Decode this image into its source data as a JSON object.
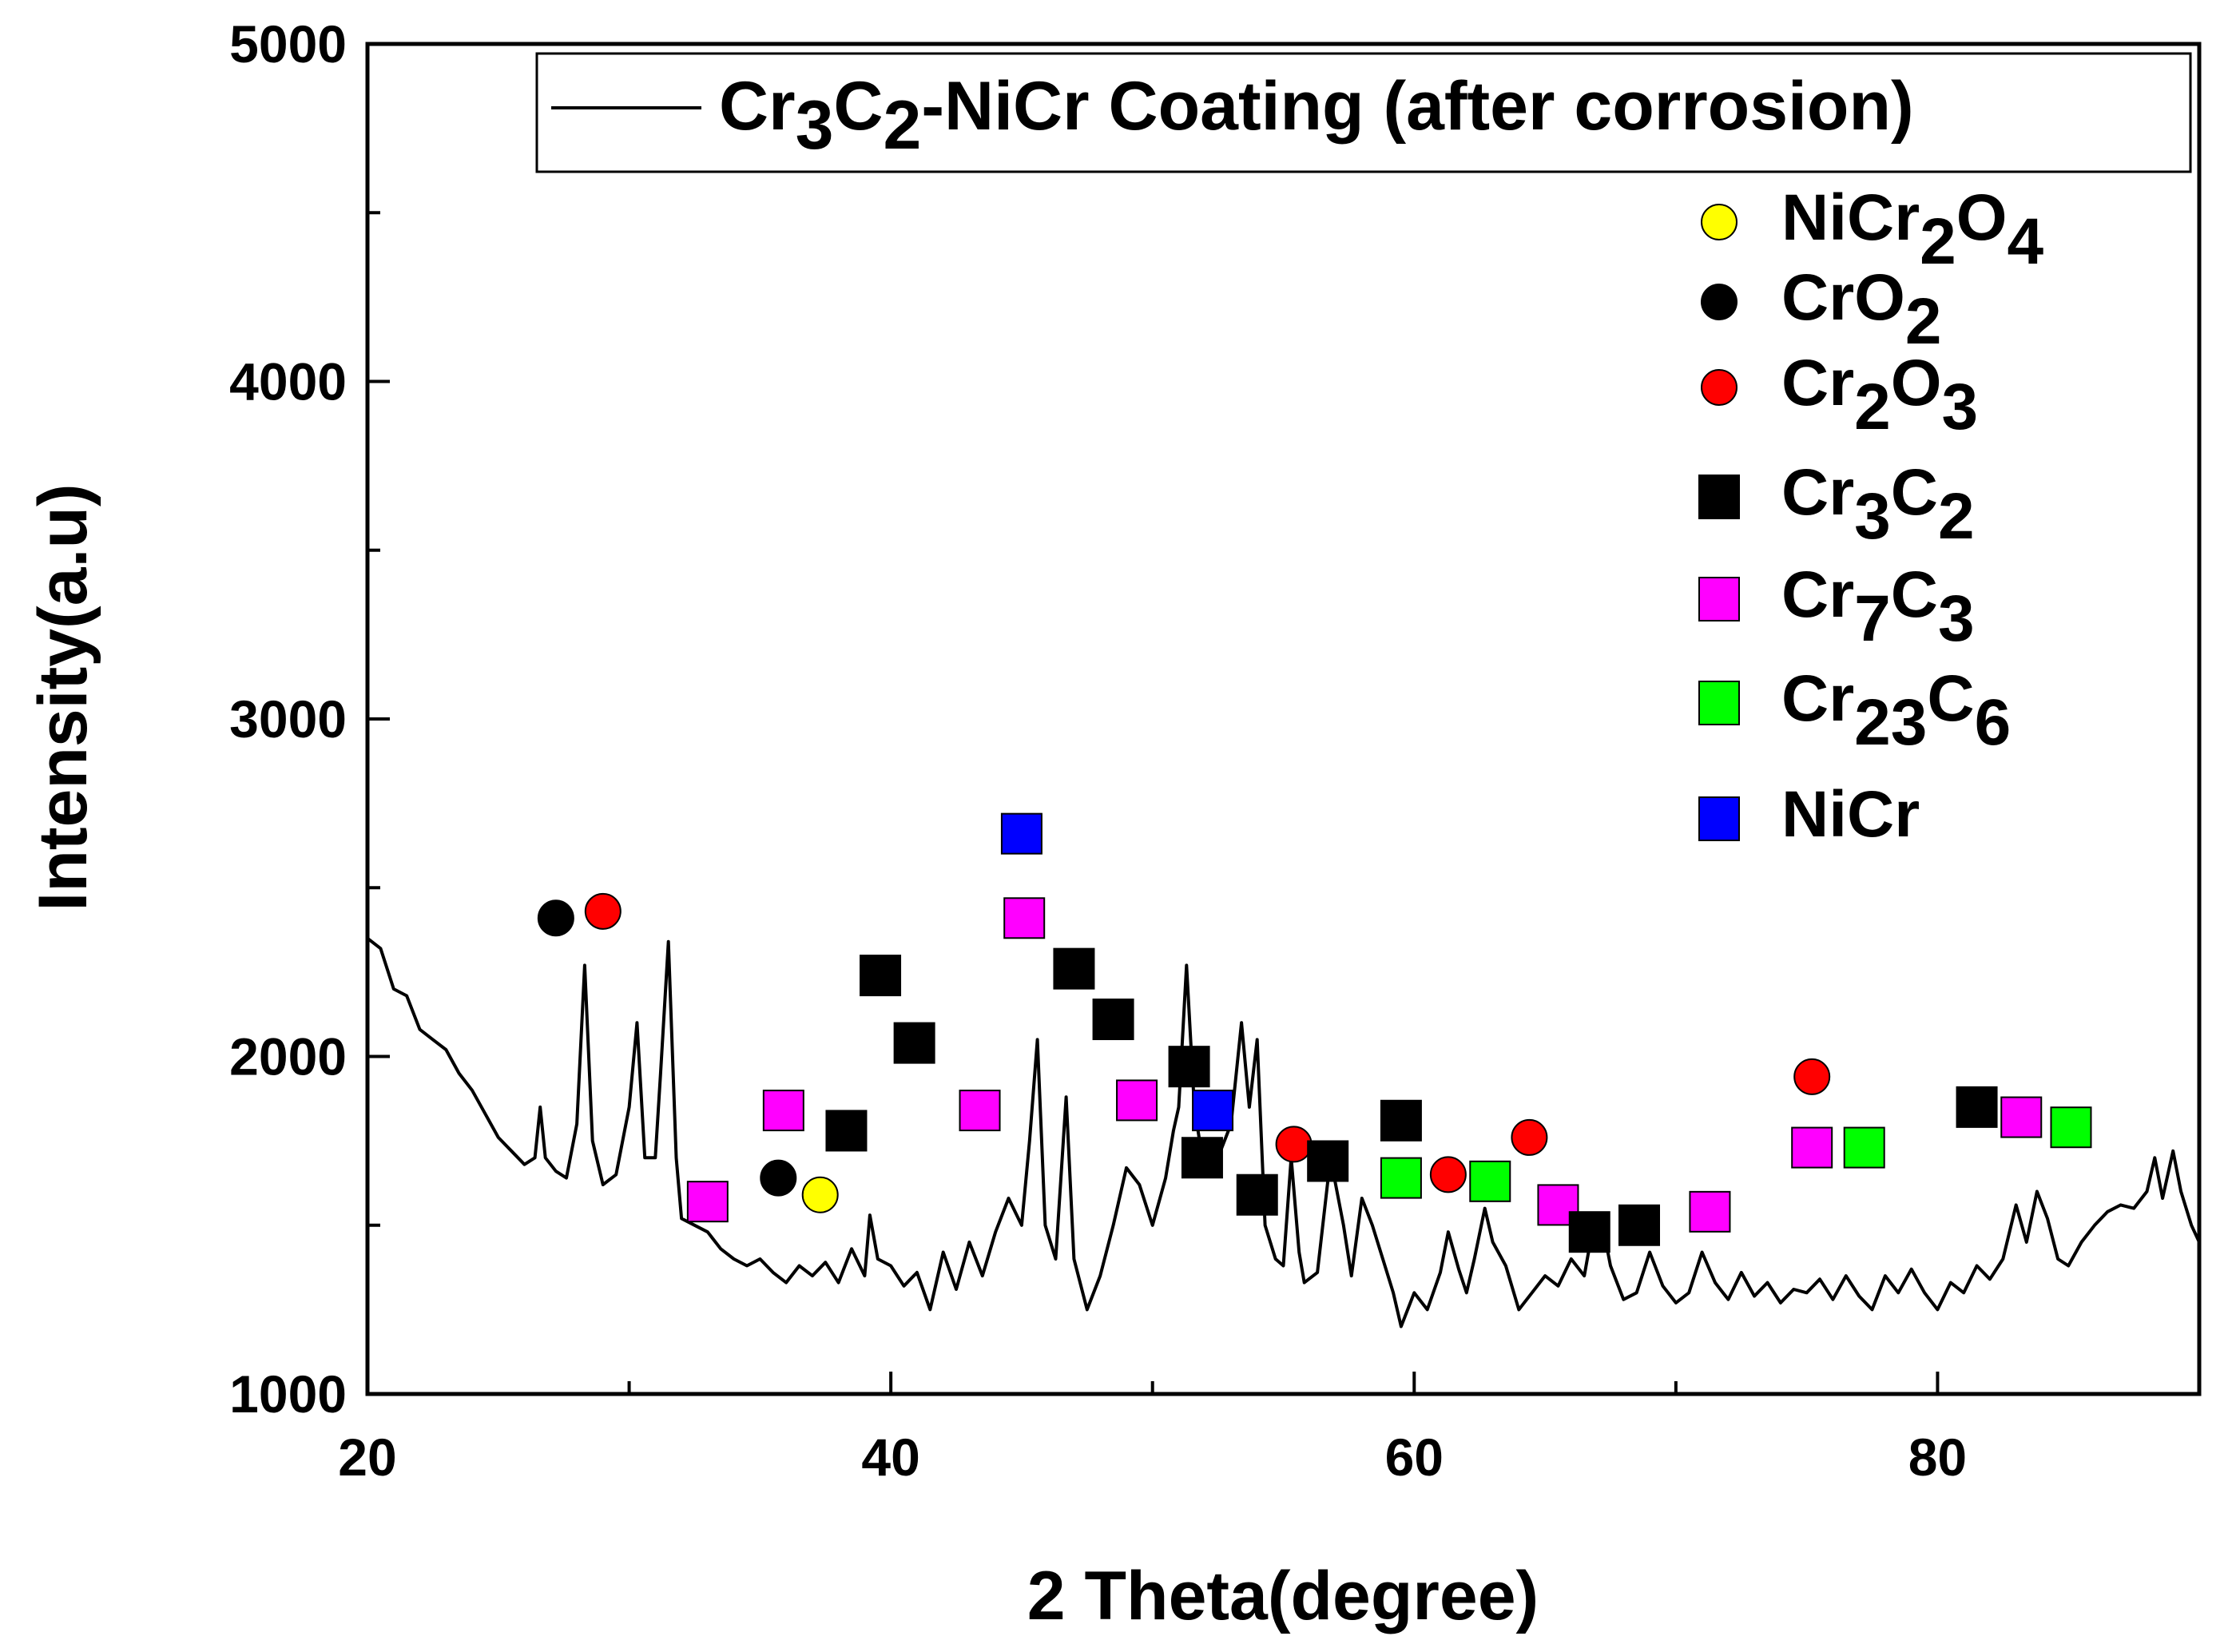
{
  "chart_data": {
    "type": "line",
    "title": "",
    "xlabel": "2 Theta(degree)",
    "ylabel": "Intensity(a.u)",
    "xlim": [
      20,
      90
    ],
    "ylim": [
      1000,
      5000
    ],
    "x_ticks": [
      20,
      40,
      60,
      80
    ],
    "y_ticks": [
      1000,
      2000,
      3000,
      4000,
      5000
    ],
    "grid": false,
    "legend_position": "top-right",
    "series": [
      {
        "name": "Cr3C2-NiCr Coating (after corrosion)",
        "name_parts": [
          {
            "t": "Cr",
            "sub": false
          },
          {
            "t": "3",
            "sub": true
          },
          {
            "t": "C",
            "sub": false
          },
          {
            "t": "2",
            "sub": true
          },
          {
            "t": "-NiCr Coating (after corrosion)",
            "sub": false
          }
        ],
        "color": "#000000",
        "points": [
          [
            20.0,
            2350
          ],
          [
            20.5,
            2320
          ],
          [
            21.0,
            2200
          ],
          [
            21.5,
            2180
          ],
          [
            22.0,
            2080
          ],
          [
            22.5,
            2050
          ],
          [
            23.0,
            2020
          ],
          [
            23.5,
            1950
          ],
          [
            24.0,
            1900
          ],
          [
            24.5,
            1830
          ],
          [
            25.0,
            1760
          ],
          [
            25.5,
            1720
          ],
          [
            26.0,
            1680
          ],
          [
            26.4,
            1700
          ],
          [
            26.6,
            1850
          ],
          [
            26.8,
            1700
          ],
          [
            27.2,
            1660
          ],
          [
            27.6,
            1640
          ],
          [
            28.0,
            1800
          ],
          [
            28.3,
            2270
          ],
          [
            28.6,
            1750
          ],
          [
            29.0,
            1620
          ],
          [
            29.5,
            1650
          ],
          [
            30.0,
            1850
          ],
          [
            30.3,
            2100
          ],
          [
            30.6,
            1700
          ],
          [
            31.0,
            1700
          ],
          [
            31.2,
            1950
          ],
          [
            31.5,
            2340
          ],
          [
            31.8,
            1700
          ],
          [
            32.0,
            1520
          ],
          [
            32.5,
            1500
          ],
          [
            33.0,
            1480
          ],
          [
            33.5,
            1430
          ],
          [
            34.0,
            1400
          ],
          [
            34.5,
            1380
          ],
          [
            35.0,
            1400
          ],
          [
            35.5,
            1360
          ],
          [
            36.0,
            1330
          ],
          [
            36.5,
            1380
          ],
          [
            37.0,
            1350
          ],
          [
            37.5,
            1390
          ],
          [
            38.0,
            1330
          ],
          [
            38.5,
            1430
          ],
          [
            39.0,
            1350
          ],
          [
            39.2,
            1530
          ],
          [
            39.5,
            1400
          ],
          [
            40.0,
            1380
          ],
          [
            40.5,
            1320
          ],
          [
            41.0,
            1360
          ],
          [
            41.5,
            1250
          ],
          [
            42.0,
            1420
          ],
          [
            42.5,
            1310
          ],
          [
            43.0,
            1450
          ],
          [
            43.5,
            1350
          ],
          [
            44.0,
            1480
          ],
          [
            44.5,
            1580
          ],
          [
            45.0,
            1500
          ],
          [
            45.3,
            1750
          ],
          [
            45.6,
            2050
          ],
          [
            45.9,
            1500
          ],
          [
            46.3,
            1400
          ],
          [
            46.7,
            1880
          ],
          [
            47.0,
            1400
          ],
          [
            47.5,
            1250
          ],
          [
            48.0,
            1350
          ],
          [
            48.5,
            1500
          ],
          [
            49.0,
            1670
          ],
          [
            49.5,
            1620
          ],
          [
            50.0,
            1500
          ],
          [
            50.5,
            1640
          ],
          [
            50.8,
            1780
          ],
          [
            51.0,
            1850
          ],
          [
            51.3,
            2270
          ],
          [
            51.6,
            1850
          ],
          [
            52.0,
            1650
          ],
          [
            52.5,
            1700
          ],
          [
            53.0,
            1800
          ],
          [
            53.4,
            2100
          ],
          [
            53.7,
            1850
          ],
          [
            54.0,
            2050
          ],
          [
            54.3,
            1500
          ],
          [
            54.7,
            1400
          ],
          [
            55.0,
            1380
          ],
          [
            55.3,
            1700
          ],
          [
            55.6,
            1420
          ],
          [
            55.8,
            1330
          ],
          [
            56.3,
            1360
          ],
          [
            56.8,
            1700
          ],
          [
            57.3,
            1500
          ],
          [
            57.6,
            1350
          ],
          [
            58.0,
            1580
          ],
          [
            58.4,
            1500
          ],
          [
            58.8,
            1400
          ],
          [
            59.2,
            1300
          ],
          [
            59.5,
            1200
          ],
          [
            60.0,
            1300
          ],
          [
            60.5,
            1250
          ],
          [
            61.0,
            1360
          ],
          [
            61.3,
            1480
          ],
          [
            61.7,
            1370
          ],
          [
            62.0,
            1300
          ],
          [
            62.3,
            1400
          ],
          [
            62.7,
            1550
          ],
          [
            63.0,
            1450
          ],
          [
            63.5,
            1380
          ],
          [
            64.0,
            1250
          ],
          [
            64.5,
            1300
          ],
          [
            65.0,
            1350
          ],
          [
            65.5,
            1320
          ],
          [
            66.0,
            1400
          ],
          [
            66.5,
            1350
          ],
          [
            66.8,
            1480
          ],
          [
            67.2,
            1500
          ],
          [
            67.5,
            1380
          ],
          [
            68.0,
            1280
          ],
          [
            68.5,
            1300
          ],
          [
            69.0,
            1420
          ],
          [
            69.5,
            1320
          ],
          [
            70.0,
            1270
          ],
          [
            70.5,
            1300
          ],
          [
            71.0,
            1420
          ],
          [
            71.5,
            1330
          ],
          [
            72.0,
            1280
          ],
          [
            72.5,
            1360
          ],
          [
            73.0,
            1290
          ],
          [
            73.5,
            1330
          ],
          [
            74.0,
            1270
          ],
          [
            74.5,
            1310
          ],
          [
            75.0,
            1300
          ],
          [
            75.5,
            1340
          ],
          [
            76.0,
            1280
          ],
          [
            76.5,
            1350
          ],
          [
            77.0,
            1290
          ],
          [
            77.5,
            1250
          ],
          [
            78.0,
            1350
          ],
          [
            78.5,
            1300
          ],
          [
            79.0,
            1370
          ],
          [
            79.5,
            1300
          ],
          [
            80.0,
            1250
          ],
          [
            80.5,
            1330
          ],
          [
            81.0,
            1300
          ],
          [
            81.5,
            1380
          ],
          [
            82.0,
            1340
          ],
          [
            82.5,
            1400
          ],
          [
            83.0,
            1560
          ],
          [
            83.4,
            1450
          ],
          [
            83.8,
            1600
          ],
          [
            84.2,
            1520
          ],
          [
            84.6,
            1400
          ],
          [
            85.0,
            1380
          ],
          [
            85.5,
            1450
          ],
          [
            86.0,
            1500
          ],
          [
            86.5,
            1540
          ],
          [
            87.0,
            1560
          ],
          [
            87.5,
            1550
          ],
          [
            88.0,
            1600
          ],
          [
            88.3,
            1700
          ],
          [
            88.6,
            1580
          ],
          [
            89.0,
            1720
          ],
          [
            89.3,
            1600
          ],
          [
            89.7,
            1500
          ],
          [
            90.0,
            1450
          ]
        ]
      }
    ],
    "phase_legend": [
      {
        "shape": "circle",
        "color": "#ffff00",
        "label_parts": [
          {
            "t": "NiCr",
            "sub": false
          },
          {
            "t": "2",
            "sub": true
          },
          {
            "t": "O",
            "sub": false
          },
          {
            "t": "4",
            "sub": true
          }
        ]
      },
      {
        "shape": "circle",
        "color": "#000000",
        "label_parts": [
          {
            "t": "CrO",
            "sub": false
          },
          {
            "t": "2",
            "sub": true
          }
        ]
      },
      {
        "shape": "circle",
        "color": "#ff0000",
        "label_parts": [
          {
            "t": "Cr",
            "sub": false
          },
          {
            "t": "2",
            "sub": true
          },
          {
            "t": "O",
            "sub": false
          },
          {
            "t": "3",
            "sub": true
          }
        ]
      },
      {
        "shape": "square",
        "color": "#000000",
        "label_parts": [
          {
            "t": "Cr",
            "sub": false
          },
          {
            "t": "3",
            "sub": true
          },
          {
            "t": "C",
            "sub": false
          },
          {
            "t": "2",
            "sub": true
          }
        ]
      },
      {
        "shape": "square",
        "color": "#ff00ff",
        "label_parts": [
          {
            "t": "Cr",
            "sub": false
          },
          {
            "t": "7",
            "sub": true
          },
          {
            "t": "C",
            "sub": false
          },
          {
            "t": "3",
            "sub": true
          }
        ]
      },
      {
        "shape": "square",
        "color": "#00ff00",
        "label_parts": [
          {
            "t": "Cr",
            "sub": false
          },
          {
            "t": "23",
            "sub": true
          },
          {
            "t": "C",
            "sub": false
          },
          {
            "t": "6",
            "sub": true
          }
        ]
      },
      {
        "shape": "square",
        "color": "#0000ff",
        "label_parts": [
          {
            "t": "NiCr",
            "sub": false
          }
        ]
      }
    ],
    "phase_markers": [
      {
        "shape": "circle",
        "color": "#000000",
        "x": 27.2,
        "y": 2410
      },
      {
        "shape": "circle",
        "color": "#ff0000",
        "x": 29.0,
        "y": 2430
      },
      {
        "shape": "circle",
        "color": "#000000",
        "x": 35.7,
        "y": 1640
      },
      {
        "shape": "circle",
        "color": "#ffff00",
        "x": 37.3,
        "y": 1590
      },
      {
        "shape": "circle",
        "color": "#ff0000",
        "x": 55.4,
        "y": 1740
      },
      {
        "shape": "circle",
        "color": "#ff0000",
        "x": 61.3,
        "y": 1650
      },
      {
        "shape": "circle",
        "color": "#ff0000",
        "x": 64.4,
        "y": 1760
      },
      {
        "shape": "circle",
        "color": "#ff0000",
        "x": 75.2,
        "y": 1940
      },
      {
        "shape": "square",
        "color": "#ff00ff",
        "x": 33.0,
        "y": 1570
      },
      {
        "shape": "square",
        "color": "#ff00ff",
        "x": 35.9,
        "y": 1840
      },
      {
        "shape": "square",
        "color": "#000000",
        "x": 38.3,
        "y": 1780
      },
      {
        "shape": "square",
        "color": "#000000",
        "x": 39.6,
        "y": 2240
      },
      {
        "shape": "square",
        "color": "#000000",
        "x": 40.9,
        "y": 2040
      },
      {
        "shape": "square",
        "color": "#ff00ff",
        "x": 43.4,
        "y": 1840
      },
      {
        "shape": "square",
        "color": "#0000ff",
        "x": 45.0,
        "y": 2660
      },
      {
        "shape": "square",
        "color": "#ff00ff",
        "x": 45.1,
        "y": 2410
      },
      {
        "shape": "square",
        "color": "#000000",
        "x": 47.0,
        "y": 2260
      },
      {
        "shape": "square",
        "color": "#000000",
        "x": 48.5,
        "y": 2110
      },
      {
        "shape": "square",
        "color": "#ff00ff",
        "x": 49.4,
        "y": 1870
      },
      {
        "shape": "square",
        "color": "#000000",
        "x": 51.4,
        "y": 1970
      },
      {
        "shape": "square",
        "color": "#000000",
        "x": 51.9,
        "y": 1700
      },
      {
        "shape": "square",
        "color": "#0000ff",
        "x": 52.3,
        "y": 1840
      },
      {
        "shape": "square",
        "color": "#000000",
        "x": 54.0,
        "y": 1590
      },
      {
        "shape": "square",
        "color": "#000000",
        "x": 56.7,
        "y": 1690
      },
      {
        "shape": "square",
        "color": "#000000",
        "x": 59.5,
        "y": 1810
      },
      {
        "shape": "square",
        "color": "#00ff00",
        "x": 59.5,
        "y": 1640
      },
      {
        "shape": "square",
        "color": "#00ff00",
        "x": 62.9,
        "y": 1630
      },
      {
        "shape": "square",
        "color": "#ff00ff",
        "x": 65.5,
        "y": 1560
      },
      {
        "shape": "square",
        "color": "#000000",
        "x": 66.7,
        "y": 1480
      },
      {
        "shape": "square",
        "color": "#000000",
        "x": 68.6,
        "y": 1500
      },
      {
        "shape": "square",
        "color": "#ff00ff",
        "x": 71.3,
        "y": 1540
      },
      {
        "shape": "square",
        "color": "#ff00ff",
        "x": 75.2,
        "y": 1730
      },
      {
        "shape": "square",
        "color": "#00ff00",
        "x": 77.2,
        "y": 1730
      },
      {
        "shape": "square",
        "color": "#000000",
        "x": 81.5,
        "y": 1850
      },
      {
        "shape": "square",
        "color": "#ff00ff",
        "x": 83.2,
        "y": 1820
      },
      {
        "shape": "square",
        "color": "#00ff00",
        "x": 85.1,
        "y": 1790
      }
    ]
  }
}
